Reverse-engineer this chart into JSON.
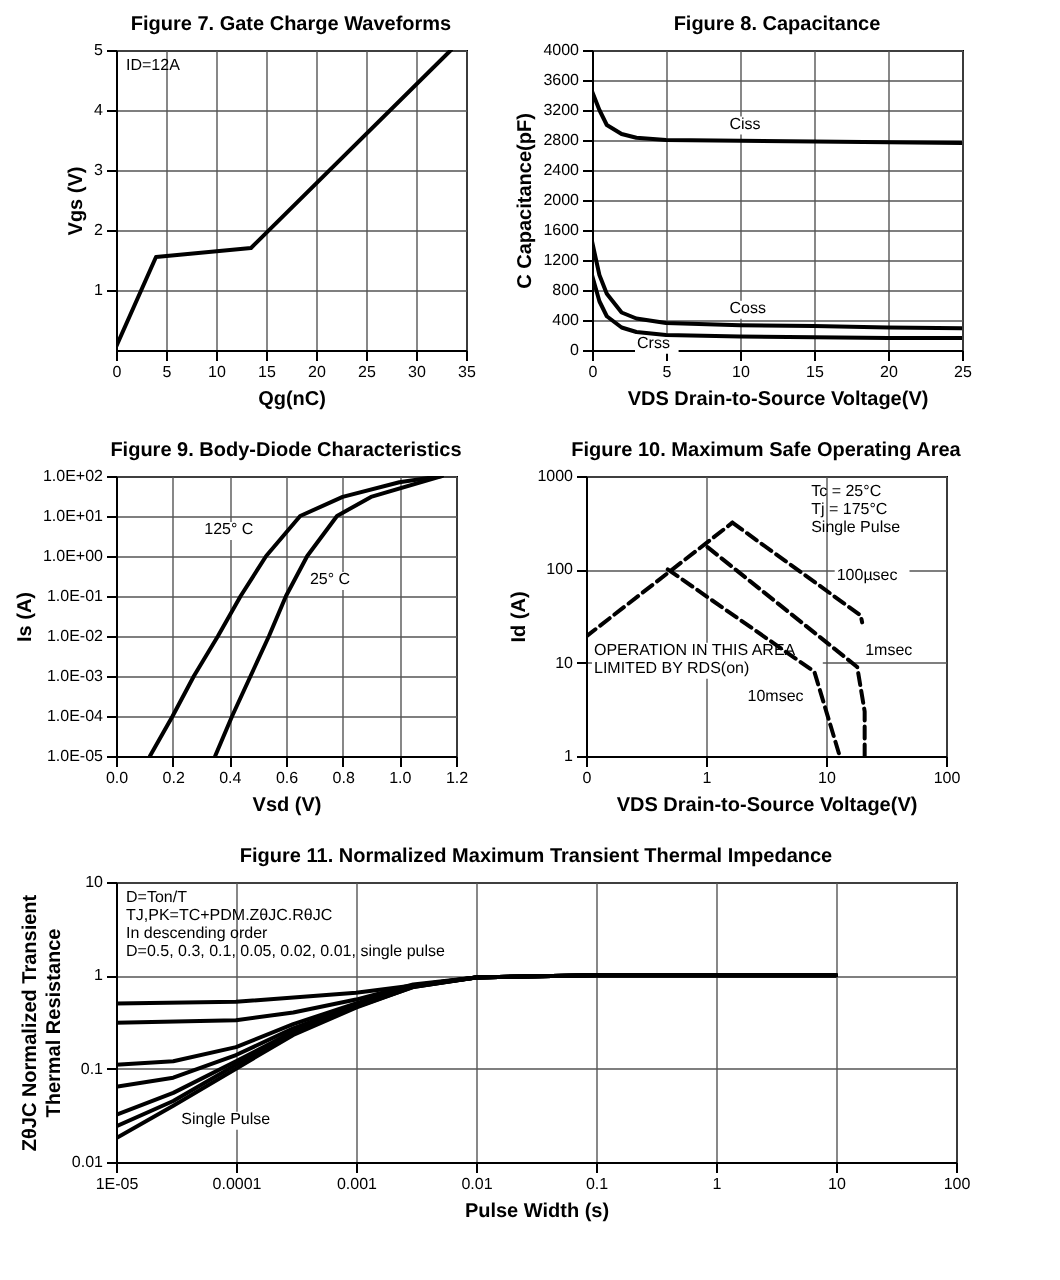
{
  "chart_data": [
    {
      "type": "line",
      "title": "Figure 7. Gate Charge Waveforms",
      "xlabel": "Qg(nC)",
      "ylabel": "Vgs (V)",
      "xlim": [
        0,
        35
      ],
      "xticks": [
        0,
        5,
        10,
        15,
        20,
        25,
        30,
        35
      ],
      "ylim": [
        0,
        5
      ],
      "yticks": [
        1,
        2,
        3,
        4,
        5
      ],
      "grid": true,
      "series": [
        {
          "color": "#000000",
          "x": [
            0,
            4,
            13.5,
            33.5
          ],
          "values": [
            0.05,
            1.55,
            1.7,
            5
          ]
        }
      ],
      "annotations": [
        "ID=12A"
      ]
    },
    {
      "type": "line",
      "title": "Figure 8. Capacitance",
      "xlabel": "VDS Drain-to-Source Voltage(V)",
      "ylabel": "C Capacitance(pF)",
      "xlim": [
        0,
        25
      ],
      "xticks": [
        0,
        5,
        10,
        15,
        20,
        25
      ],
      "ylim": [
        0,
        4000
      ],
      "yticks": [
        0,
        400,
        800,
        1200,
        1600,
        2000,
        2400,
        2800,
        3200,
        3600,
        4000
      ],
      "grid": true,
      "series": [
        {
          "name": "Ciss",
          "color": "#000000",
          "x": [
            0,
            0.5,
            1,
            2,
            3,
            5,
            10,
            15,
            20,
            25
          ],
          "values": [
            3450,
            3200,
            3000,
            2880,
            2830,
            2800,
            2790,
            2780,
            2770,
            2760
          ]
        },
        {
          "name": "Coss",
          "color": "#000000",
          "x": [
            0,
            0.5,
            1,
            2,
            3,
            5,
            10,
            15,
            20,
            25
          ],
          "values": [
            1450,
            1000,
            750,
            500,
            420,
            360,
            330,
            320,
            300,
            290
          ]
        },
        {
          "name": "Crss",
          "color": "#000000",
          "x": [
            0,
            0.5,
            1,
            2,
            3,
            5,
            10,
            15,
            20,
            25
          ],
          "values": [
            1000,
            650,
            450,
            300,
            240,
            200,
            180,
            170,
            160,
            160
          ]
        }
      ]
    },
    {
      "type": "line",
      "title": "Figure 9. Body-Diode Characteristics",
      "xlabel": "Vsd    (V)",
      "ylabel": "Is (A)",
      "log": "y",
      "xlim": [
        0,
        1.2
      ],
      "xticks": [
        {
          "value": 0,
          "label": "0.0"
        },
        0.2,
        0.4,
        0.6,
        0.8,
        {
          "value": 1,
          "label": "1.0"
        },
        1.2
      ],
      "ylim": [
        1e-05,
        100
      ],
      "yticks": [
        {
          "value": 1e-05,
          "label": "1.0E-05"
        },
        {
          "value": 0.0001,
          "label": "1.0E-04"
        },
        {
          "value": 0.001,
          "label": "1.0E-03"
        },
        {
          "value": 0.01,
          "label": "1.0E-02"
        },
        {
          "value": 0.1,
          "label": "1.0E-01"
        },
        {
          "value": 1,
          "label": "1.0E+00"
        },
        {
          "value": 10,
          "label": "1.0E+01"
        },
        {
          "value": 100,
          "label": "1.0E+02"
        }
      ],
      "grid": true,
      "series": [
        {
          "name": "125° C",
          "color": "#000000",
          "x": [
            0.12,
            0.2,
            0.275,
            0.36,
            0.44,
            0.53,
            0.65,
            0.8,
            1.0,
            1.15
          ],
          "values": [
            1e-05,
            0.0001,
            0.001,
            0.01,
            0.1,
            1,
            10,
            30,
            70,
            100
          ]
        },
        {
          "name": "25° C",
          "color": "#000000",
          "x": [
            0.35,
            0.41,
            0.475,
            0.54,
            0.6,
            0.675,
            0.78,
            0.9,
            1.15
          ],
          "values": [
            1e-05,
            0.0001,
            0.001,
            0.01,
            0.1,
            1,
            10,
            30,
            100
          ]
        }
      ]
    },
    {
      "type": "line",
      "title": "Figure 10. Maximum Safe Operating Area",
      "xlabel": "VDS Drain-to-Source Voltage(V)",
      "ylabel": "Id (A)",
      "log": "xy",
      "xlim": [
        0.1,
        100
      ],
      "xticks": [
        {
          "value": 0.1,
          "label": "0"
        },
        1,
        10,
        100
      ],
      "ylim": [
        1,
        1000
      ],
      "yticks": [
        1,
        10,
        100,
        1000
      ],
      "grid": true,
      "line_style": "dashed",
      "series": [
        {
          "name": "OPERATION IN THIS AREA LIMITED BY RDS(on)",
          "color": "#000000",
          "x": [
            0.1,
            1.66
          ],
          "values": [
            19,
            316
          ]
        },
        {
          "name": "100µsec",
          "color": "#000000",
          "x": [
            1.66,
            19.5,
            20
          ],
          "values": [
            316,
            32,
            27
          ]
        },
        {
          "name": "1msec",
          "color": "#000000",
          "x": [
            1.03,
            18.2,
            21,
            21
          ],
          "values": [
            173,
            9,
            3,
            1
          ]
        },
        {
          "name": "10msec",
          "color": "#000000",
          "x": [
            0.48,
            8,
            10.5,
            13
          ],
          "values": [
            100,
            8,
            2.5,
            1
          ]
        }
      ],
      "annotations": [
        "Tc = 25°C",
        "Tj = 175°C",
        "Single Pulse"
      ]
    },
    {
      "type": "line",
      "title": "Figure 11. Normalized Maximum Transient Thermal Impedance",
      "xlabel": "Pulse Width (s)",
      "ylabel": "ZθJC Normalized Transient Thermal Resistance",
      "log": "xy",
      "xlim": [
        1e-05,
        100
      ],
      "xticks": [
        {
          "value": 1e-05,
          "label": "1E-05"
        },
        {
          "value": 0.0001,
          "label": "0.0001"
        },
        {
          "value": 0.001,
          "label": "0.001"
        },
        {
          "value": 0.01,
          "label": "0.01"
        },
        {
          "value": 0.1,
          "label": "0.1"
        },
        1,
        10,
        100
      ],
      "ylim": [
        0.01,
        10
      ],
      "yticks": [
        0.01,
        0.1,
        1,
        10
      ],
      "grid": true,
      "series": [
        {
          "color": "#000000",
          "x": [
            1e-05,
            0.0001,
            0.001,
            0.01,
            0.1,
            1,
            10
          ],
          "values": [
            0.5,
            0.52,
            0.65,
            0.95,
            1,
            1,
            1
          ]
        },
        {
          "color": "#000000",
          "x": [
            1e-05,
            0.0001,
            0.0003,
            0.001,
            0.003,
            0.01,
            0.1,
            10
          ],
          "values": [
            0.31,
            0.33,
            0.4,
            0.55,
            0.8,
            0.95,
            1,
            1
          ]
        },
        {
          "color": "#000000",
          "x": [
            1e-05,
            3e-05,
            0.0001,
            0.0003,
            0.001,
            0.003,
            0.01,
            0.1,
            10
          ],
          "values": [
            0.11,
            0.12,
            0.17,
            0.3,
            0.5,
            0.78,
            0.95,
            1,
            1
          ]
        },
        {
          "color": "#000000",
          "x": [
            1e-05,
            3e-05,
            0.0001,
            0.0003,
            0.001,
            0.003,
            0.01,
            0.1,
            10
          ],
          "values": [
            0.064,
            0.08,
            0.14,
            0.27,
            0.48,
            0.77,
            0.95,
            1,
            1
          ]
        },
        {
          "color": "#000000",
          "x": [
            1e-05,
            3e-05,
            0.0001,
            0.0003,
            0.001,
            0.003,
            0.01,
            0.1,
            10
          ],
          "values": [
            0.032,
            0.055,
            0.12,
            0.25,
            0.47,
            0.76,
            0.95,
            1,
            1
          ]
        },
        {
          "color": "#000000",
          "x": [
            1e-05,
            3e-05,
            0.0001,
            0.0003,
            0.001,
            0.003,
            0.01,
            0.1,
            10
          ],
          "values": [
            0.024,
            0.045,
            0.11,
            0.24,
            0.46,
            0.75,
            0.95,
            1,
            1
          ]
        },
        {
          "name": "Single Pulse",
          "color": "#000000",
          "x": [
            1e-05,
            3e-05,
            0.0001,
            0.0003,
            0.001,
            0.003,
            0.01,
            0.1,
            10
          ],
          "values": [
            0.018,
            0.04,
            0.1,
            0.23,
            0.45,
            0.75,
            0.95,
            1,
            1
          ]
        }
      ],
      "annotations": [
        "D=Ton/T",
        "TJ,PK=TC+PDM.ZθJC.RθJC",
        "In descending order",
        "D=0.5, 0.3, 0.1, 0.05, 0.02, 0.01, single pulse"
      ]
    }
  ]
}
